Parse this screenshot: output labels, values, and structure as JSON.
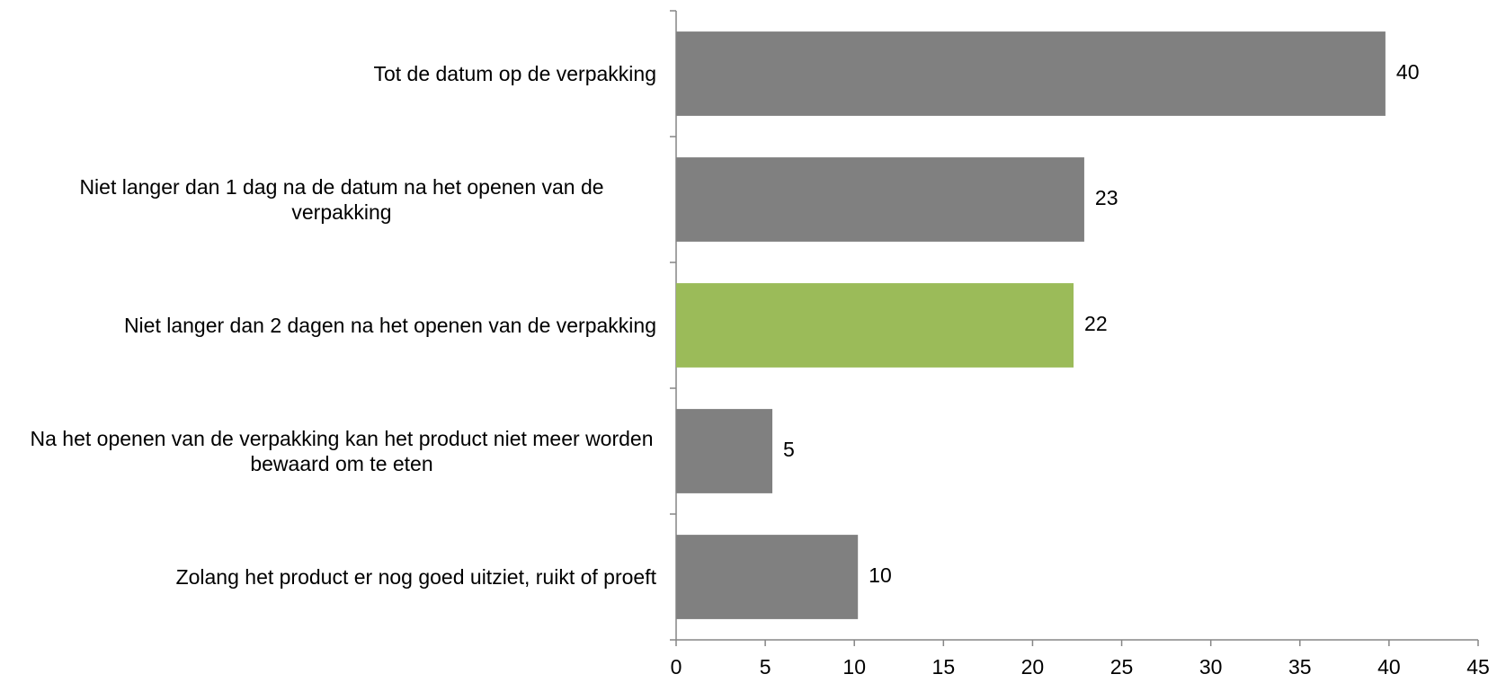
{
  "chart_data": {
    "type": "bar",
    "orientation": "horizontal",
    "categories": [
      "Tot de datum op de verpakking",
      "Niet langer dan 1 dag na de datum na het openen van de verpakking",
      "Niet langer dan 2 dagen na het openen van de verpakking",
      "Na het openen van de verpakking kan het product niet meer worden bewaard om te eten",
      "Zolang het product er nog goed uitziet, ruikt of proeft"
    ],
    "values": [
      39.8,
      22.9,
      22.3,
      5.4,
      10.2
    ],
    "value_labels": [
      "40",
      "23",
      "22",
      "5",
      "10"
    ],
    "colors": [
      "#808080",
      "#808080",
      "#9bbb59",
      "#808080",
      "#808080"
    ],
    "xlim": [
      0,
      45
    ],
    "xticks": [
      0,
      5,
      10,
      15,
      20,
      25,
      30,
      35,
      40,
      45
    ],
    "grid": false
  }
}
